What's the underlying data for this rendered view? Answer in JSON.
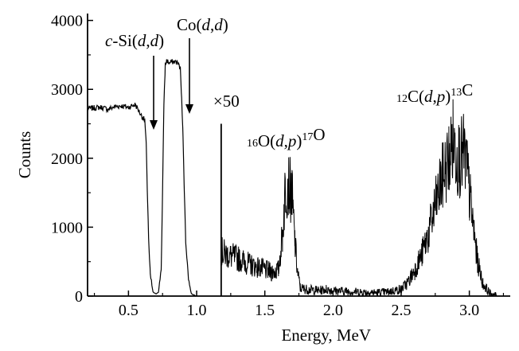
{
  "chart_data": {
    "type": "line",
    "xlabel": "Energy, MeV",
    "ylabel": "Counts",
    "xlim": [
      0.2,
      3.3
    ],
    "ylim": [
      0,
      4100
    ],
    "xticks": [
      0.5,
      1.0,
      1.5,
      2.0,
      2.5,
      3.0
    ],
    "xtick_labels": [
      "0.5",
      "1.0",
      "1.5",
      "2.0",
      "2.5",
      "3.0"
    ],
    "yticks": [
      0,
      1000,
      2000,
      3000,
      4000
    ],
    "ytick_labels": [
      "0",
      "1000",
      "2000",
      "3000",
      "4000"
    ],
    "grid": false,
    "scale_break": {
      "x": 1.18,
      "label": "×50"
    },
    "annotations": [
      {
        "text": "c-Si(d,d)",
        "x": 0.69,
        "y": 2350,
        "arrow": true
      },
      {
        "text": "Co(d,d)",
        "x": 0.94,
        "y": 2600,
        "arrow": true
      },
      {
        "text": "16O(d,p)17O",
        "x": 1.68,
        "y": 1800
      },
      {
        "text": "12C(d,p)13C",
        "x": 2.92,
        "y": 2600
      }
    ],
    "series": [
      {
        "x": [
          0.2,
          0.25,
          0.3,
          0.35,
          0.4,
          0.45,
          0.5,
          0.55,
          0.6,
          0.62,
          0.63,
          0.64,
          0.65,
          0.66,
          0.68,
          0.7,
          0.72,
          0.74,
          0.75,
          0.76,
          0.77,
          0.78,
          0.8,
          0.82,
          0.84,
          0.86,
          0.88,
          0.89,
          0.9,
          0.91,
          0.92,
          0.94,
          0.96,
          0.98,
          1.0
        ],
        "values": [
          2720,
          2730,
          2740,
          2710,
          2750,
          2760,
          2740,
          2780,
          2600,
          2550,
          2200,
          1400,
          700,
          300,
          60,
          30,
          60,
          400,
          1500,
          2800,
          3350,
          3420,
          3380,
          3400,
          3400,
          3390,
          3300,
          2900,
          2300,
          1500,
          800,
          250,
          40,
          15,
          5
        ]
      },
      {
        "x": [
          1.18,
          1.2,
          1.25,
          1.3,
          1.35,
          1.4,
          1.45,
          1.5,
          1.55,
          1.6,
          1.63,
          1.65,
          1.67,
          1.7,
          1.72,
          1.74,
          1.76,
          1.8,
          1.85,
          1.9,
          1.95,
          2.0,
          2.1,
          2.2,
          2.3,
          2.4,
          2.5,
          2.55,
          2.6,
          2.65,
          2.7,
          2.75,
          2.8,
          2.85,
          2.88,
          2.9,
          2.93,
          2.96,
          2.98,
          3.0,
          3.03,
          3.06,
          3.1,
          3.15,
          3.2
        ],
        "values": [
          650,
          620,
          580,
          550,
          500,
          450,
          420,
          380,
          350,
          380,
          900,
          1550,
          1650,
          1450,
          800,
          350,
          120,
          100,
          90,
          80,
          100,
          80,
          70,
          60,
          50,
          60,
          100,
          200,
          380,
          600,
          900,
          1300,
          1700,
          2000,
          2250,
          2100,
          2000,
          2050,
          1900,
          1500,
          1000,
          500,
          180,
          40,
          10
        ]
      }
    ]
  }
}
